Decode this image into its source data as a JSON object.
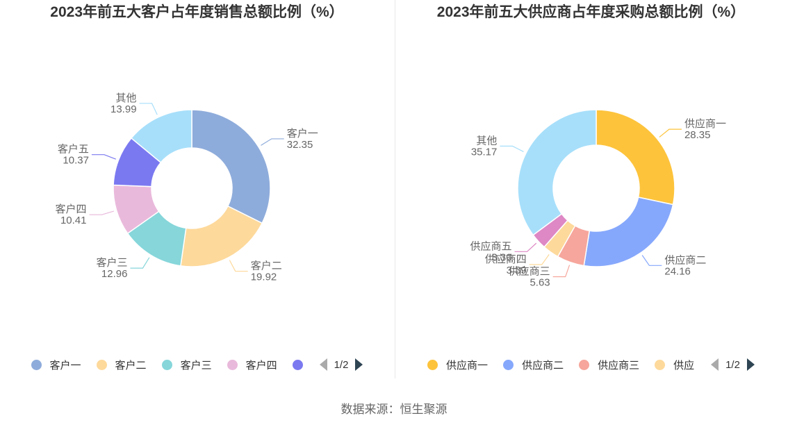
{
  "chart_data": [
    {
      "type": "pie",
      "variant": "donut",
      "title": "2023年前五大客户占年度销售总额比例（%）",
      "categories": [
        "客户一",
        "客户二",
        "客户三",
        "客户四",
        "客户五",
        "其他"
      ],
      "values": [
        32.35,
        19.92,
        12.96,
        10.41,
        10.37,
        13.99
      ],
      "value_labels": [
        "32.35",
        "19.92",
        "12.96",
        "10.41",
        "10.37",
        "13.99"
      ],
      "colors": [
        "#8eacdb",
        "#fdd99b",
        "#86d6da",
        "#e9b9db",
        "#7b79f0",
        "#a7dffa"
      ],
      "legend": {
        "position": "bottom",
        "visible_items": [
          "客户一",
          "客户二",
          "客户三",
          "客户四",
          ""
        ],
        "page": "1/2"
      }
    },
    {
      "type": "pie",
      "variant": "donut",
      "title": "2023年前五大供应商占年度采购总额比例（%）",
      "categories": [
        "供应商一",
        "供应商二",
        "供应商三",
        "供应商四",
        "供应商五",
        "其他"
      ],
      "values": [
        28.35,
        24.16,
        5.63,
        3.39,
        3.3,
        35.17
      ],
      "value_labels": [
        "28.35",
        "24.16",
        "5.63",
        "3.39",
        "3.30",
        "35.17"
      ],
      "colors": [
        "#fdc33b",
        "#86a8fc",
        "#f6a69c",
        "#fdd99b",
        "#de88c5",
        "#a7dffa"
      ],
      "legend": {
        "position": "bottom",
        "visible_items": [
          "供应商一",
          "供应商二",
          "供应商三",
          "供应"
        ],
        "page": "1/2"
      }
    }
  ],
  "footer": {
    "source": "数据来源：恒生聚源"
  }
}
